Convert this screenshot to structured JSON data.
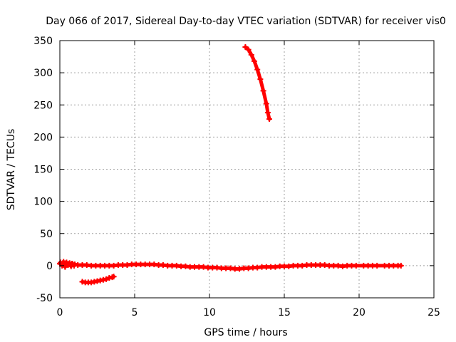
{
  "chart_data": {
    "type": "scatter",
    "title": "Day 066 of 2017, Sidereal Day-to-day VTEC variation (SDTVAR) for receiver vis0",
    "xlabel": "GPS time / hours",
    "ylabel": "SDTVAR / TECUs",
    "xlim": [
      0,
      25
    ],
    "ylim": [
      -50,
      350
    ],
    "xticks": [
      0,
      5,
      10,
      15,
      20,
      25
    ],
    "yticks": [
      -50,
      0,
      50,
      100,
      150,
      200,
      250,
      300,
      350
    ],
    "grid": true,
    "legend": "none",
    "marker_color": "#ff0000",
    "series": [
      {
        "points": [
          [
            0.0,
            3
          ],
          [
            0.2,
            4
          ],
          [
            0.4,
            4
          ],
          [
            0.6,
            3
          ],
          [
            0.8,
            3
          ],
          [
            1.0,
            2
          ],
          [
            1.2,
            1
          ],
          [
            1.5,
            1
          ],
          [
            1.8,
            1
          ],
          [
            2.1,
            0
          ],
          [
            2.4,
            0
          ],
          [
            2.7,
            0
          ],
          [
            3.0,
            0
          ],
          [
            3.3,
            0
          ],
          [
            3.6,
            0
          ],
          [
            3.9,
            1
          ],
          [
            4.2,
            1
          ],
          [
            4.5,
            1
          ],
          [
            4.8,
            2
          ],
          [
            5.1,
            2
          ],
          [
            5.4,
            2
          ],
          [
            5.7,
            2
          ],
          [
            6.0,
            2
          ],
          [
            6.3,
            2
          ],
          [
            6.6,
            1
          ],
          [
            6.9,
            1
          ],
          [
            7.2,
            0
          ],
          [
            7.5,
            0
          ],
          [
            7.8,
            0
          ],
          [
            8.1,
            -1
          ],
          [
            8.4,
            -1
          ],
          [
            8.7,
            -2
          ],
          [
            9.0,
            -2
          ],
          [
            9.3,
            -2
          ],
          [
            9.6,
            -2
          ],
          [
            9.9,
            -3
          ],
          [
            10.2,
            -3
          ],
          [
            10.5,
            -3
          ],
          [
            10.8,
            -4
          ],
          [
            11.1,
            -4
          ],
          [
            11.4,
            -4
          ],
          [
            11.7,
            -5
          ],
          [
            12.0,
            -5
          ],
          [
            12.3,
            -4
          ],
          [
            12.6,
            -4
          ],
          [
            12.9,
            -3
          ],
          [
            13.2,
            -3
          ],
          [
            13.5,
            -2
          ],
          [
            13.8,
            -2
          ],
          [
            14.1,
            -2
          ],
          [
            14.4,
            -2
          ],
          [
            14.7,
            -1
          ],
          [
            15.0,
            -1
          ],
          [
            15.3,
            -1
          ],
          [
            15.6,
            0
          ],
          [
            15.9,
            0
          ],
          [
            16.2,
            0
          ],
          [
            16.5,
            1
          ],
          [
            16.8,
            1
          ],
          [
            17.1,
            1
          ],
          [
            17.4,
            1
          ],
          [
            17.7,
            1
          ],
          [
            18.0,
            0
          ],
          [
            18.3,
            0
          ],
          [
            18.6,
            0
          ],
          [
            18.9,
            -1
          ],
          [
            19.2,
            0
          ],
          [
            19.5,
            0
          ],
          [
            19.8,
            0
          ],
          [
            20.3,
            0
          ],
          [
            20.6,
            0
          ],
          [
            20.9,
            0
          ],
          [
            21.2,
            0
          ],
          [
            21.7,
            0
          ],
          [
            22.0,
            0
          ],
          [
            22.3,
            0
          ],
          [
            22.6,
            0
          ],
          [
            22.8,
            0
          ]
        ]
      },
      {
        "points": [
          [
            0.05,
            5
          ],
          [
            0.15,
            0
          ],
          [
            0.25,
            6
          ],
          [
            0.35,
            -2
          ],
          [
            0.45,
            5
          ],
          [
            0.55,
            1
          ],
          [
            0.65,
            4
          ],
          [
            0.75,
            -1
          ],
          [
            0.85,
            3
          ],
          [
            0.95,
            0
          ]
        ]
      },
      {
        "points": [
          [
            1.5,
            -25
          ],
          [
            1.7,
            -26
          ],
          [
            1.9,
            -26
          ],
          [
            2.1,
            -26
          ],
          [
            2.3,
            -25
          ],
          [
            2.5,
            -24
          ],
          [
            2.7,
            -23
          ],
          [
            2.9,
            -22
          ],
          [
            3.1,
            -21
          ],
          [
            3.3,
            -19
          ],
          [
            3.5,
            -18
          ],
          [
            3.6,
            -17
          ]
        ]
      },
      {
        "points": [
          [
            12.4,
            340
          ],
          [
            12.6,
            336
          ],
          [
            12.8,
            328
          ],
          [
            13.0,
            318
          ],
          [
            13.2,
            305
          ],
          [
            13.4,
            290
          ],
          [
            13.6,
            272
          ],
          [
            13.8,
            252
          ],
          [
            13.9,
            238
          ],
          [
            14.0,
            228
          ]
        ]
      }
    ]
  }
}
